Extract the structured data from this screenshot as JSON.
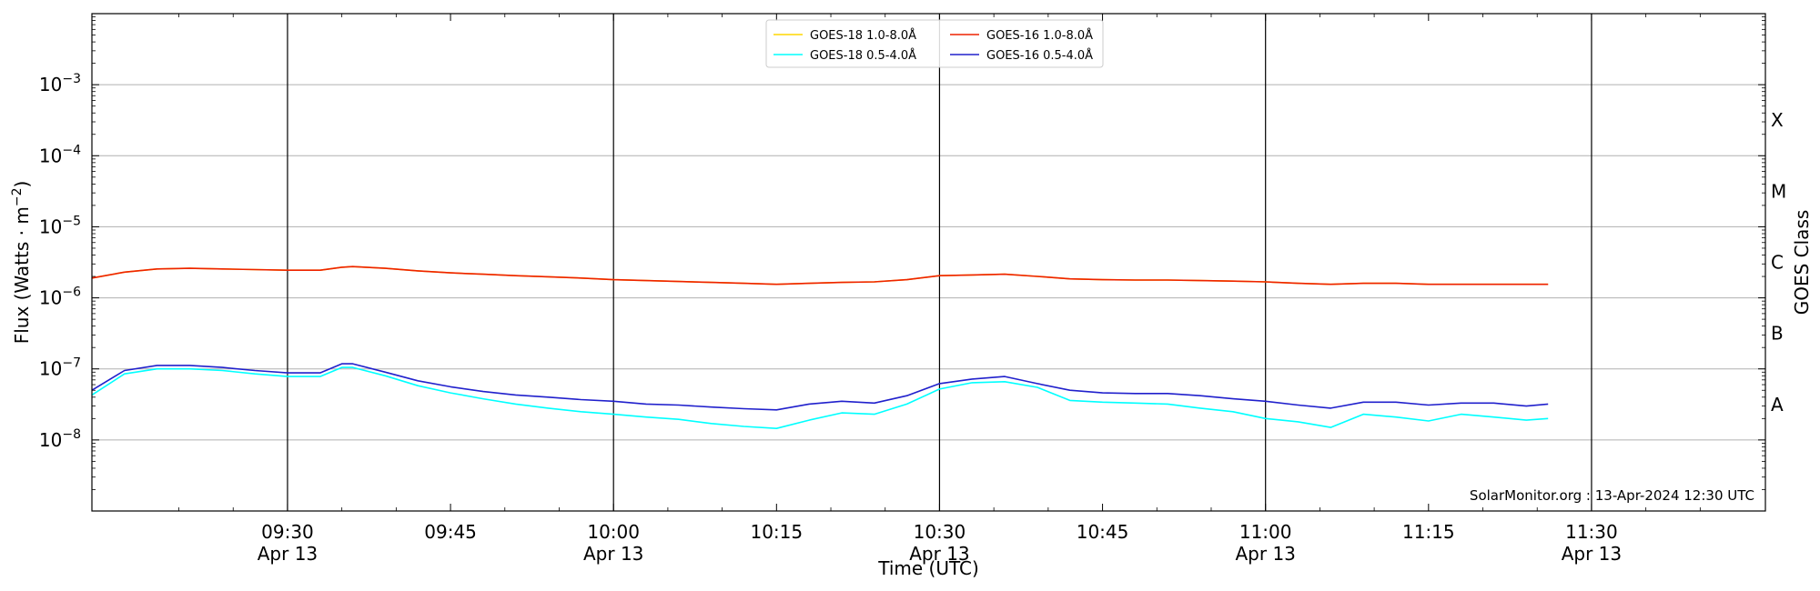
{
  "chart_data": {
    "type": "line",
    "xlabel": "Time (UTC)",
    "ylabel": "Flux (Watts · m",
    "ylabel_sup": "−2",
    "ylabel_close": ")",
    "y2label": "GOES Class",
    "yscale": "log",
    "xlim": [
      "09:12",
      "11:46"
    ],
    "ylim": [
      1e-09,
      0.01
    ],
    "grid": "horizontal",
    "legend_position": "top-center",
    "credit": "SolarMonitor.org : 13-Apr-2024 12:30 UTC",
    "y_ticks": [
      {
        "value": 0.001,
        "base": "10",
        "exp": "−3"
      },
      {
        "value": 0.0001,
        "base": "10",
        "exp": "−4"
      },
      {
        "value": 1e-05,
        "base": "10",
        "exp": "−5"
      },
      {
        "value": 1e-06,
        "base": "10",
        "exp": "−6"
      },
      {
        "value": 1e-07,
        "base": "10",
        "exp": "−7"
      },
      {
        "value": 1e-08,
        "base": "10",
        "exp": "−8"
      }
    ],
    "class_labels": [
      {
        "label": "X",
        "value": 0.000316
      },
      {
        "label": "M",
        "value": 3.16e-05
      },
      {
        "label": "C",
        "value": 3.16e-06
      },
      {
        "label": "B",
        "value": 3.16e-07
      },
      {
        "label": "A",
        "value": 3.16e-08
      }
    ],
    "x_ticks": [
      {
        "time": "09:30",
        "line1": "09:30",
        "line2": "Apr 13"
      },
      {
        "time": "09:45",
        "line1": "09:45",
        "line2": ""
      },
      {
        "time": "10:00",
        "line1": "10:00",
        "line2": "Apr 13"
      },
      {
        "time": "10:15",
        "line1": "10:15",
        "line2": ""
      },
      {
        "time": "10:30",
        "line1": "10:30",
        "line2": "Apr 13"
      },
      {
        "time": "10:45",
        "line1": "10:45",
        "line2": ""
      },
      {
        "time": "11:00",
        "line1": "11:00",
        "line2": "Apr 13"
      },
      {
        "time": "11:15",
        "line1": "11:15",
        "line2": ""
      },
      {
        "time": "11:30",
        "line1": "11:30",
        "line2": "Apr 13"
      }
    ],
    "vlines": [
      "09:30",
      "10:00",
      "10:30",
      "11:00",
      "11:30"
    ],
    "legend": [
      {
        "name": "GOES-18 1.0-8.0Å",
        "color": "#ffd700"
      },
      {
        "name": "GOES-18 0.5-4.0Å",
        "color": "#00ffff"
      },
      {
        "name": "GOES-16 1.0-8.0Å",
        "color": "#ee2200"
      },
      {
        "name": "GOES-16 0.5-4.0Å",
        "color": "#2020cc"
      }
    ],
    "series": [
      {
        "name": "GOES-18 1.0-8.0Å",
        "color": "#ffd700",
        "x": [
          "09:12",
          "09:15",
          "09:18",
          "09:21",
          "09:24",
          "09:27",
          "09:30",
          "09:33",
          "09:35",
          "09:36",
          "09:39",
          "09:42",
          "09:45",
          "09:48",
          "09:51",
          "09:54",
          "09:57",
          "10:00",
          "10:03",
          "10:06",
          "10:09",
          "10:12",
          "10:15",
          "10:18",
          "10:21",
          "10:24",
          "10:27",
          "10:30",
          "10:33",
          "10:36",
          "10:39",
          "10:42",
          "10:45",
          "10:48",
          "10:51",
          "10:54",
          "10:57",
          "11:00",
          "11:03",
          "11:06",
          "11:09",
          "11:12",
          "11:15",
          "11:18",
          "11:21",
          "11:24",
          "11:26"
        ],
        "values": [
          1.9e-06,
          2.3e-06,
          2.55e-06,
          2.6e-06,
          2.55e-06,
          2.5e-06,
          2.45e-06,
          2.45e-06,
          2.7e-06,
          2.75e-06,
          2.6e-06,
          2.4e-06,
          2.25e-06,
          2.15e-06,
          2.05e-06,
          1.98e-06,
          1.9e-06,
          1.8e-06,
          1.75e-06,
          1.7e-06,
          1.65e-06,
          1.6e-06,
          1.55e-06,
          1.6e-06,
          1.65e-06,
          1.68e-06,
          1.8e-06,
          2.05e-06,
          2.1e-06,
          2.15e-06,
          2e-06,
          1.85e-06,
          1.8e-06,
          1.78e-06,
          1.78e-06,
          1.75e-06,
          1.72e-06,
          1.68e-06,
          1.6e-06,
          1.55e-06,
          1.6e-06,
          1.6e-06,
          1.55e-06,
          1.55e-06,
          1.55e-06,
          1.55e-06,
          1.55e-06
        ]
      },
      {
        "name": "GOES-16 1.0-8.0Å",
        "color": "#ee2200",
        "x": [
          "09:12",
          "09:15",
          "09:18",
          "09:21",
          "09:24",
          "09:27",
          "09:30",
          "09:33",
          "09:35",
          "09:36",
          "09:39",
          "09:42",
          "09:45",
          "09:48",
          "09:51",
          "09:54",
          "09:57",
          "10:00",
          "10:03",
          "10:06",
          "10:09",
          "10:12",
          "10:15",
          "10:18",
          "10:21",
          "10:24",
          "10:27",
          "10:30",
          "10:33",
          "10:36",
          "10:39",
          "10:42",
          "10:45",
          "10:48",
          "10:51",
          "10:54",
          "10:57",
          "11:00",
          "11:03",
          "11:06",
          "11:09",
          "11:12",
          "11:15",
          "11:18",
          "11:21",
          "11:24",
          "11:26"
        ],
        "values": [
          1.9e-06,
          2.3e-06,
          2.55e-06,
          2.6e-06,
          2.55e-06,
          2.5e-06,
          2.45e-06,
          2.45e-06,
          2.7e-06,
          2.75e-06,
          2.6e-06,
          2.4e-06,
          2.25e-06,
          2.15e-06,
          2.05e-06,
          1.98e-06,
          1.9e-06,
          1.8e-06,
          1.75e-06,
          1.7e-06,
          1.65e-06,
          1.6e-06,
          1.55e-06,
          1.6e-06,
          1.65e-06,
          1.68e-06,
          1.8e-06,
          2.05e-06,
          2.1e-06,
          2.15e-06,
          2e-06,
          1.85e-06,
          1.8e-06,
          1.78e-06,
          1.78e-06,
          1.75e-06,
          1.72e-06,
          1.68e-06,
          1.6e-06,
          1.55e-06,
          1.6e-06,
          1.6e-06,
          1.55e-06,
          1.55e-06,
          1.55e-06,
          1.55e-06,
          1.55e-06
        ]
      },
      {
        "name": "GOES-18 0.5-4.0Å",
        "color": "#00ffff",
        "x": [
          "09:12",
          "09:15",
          "09:18",
          "09:21",
          "09:24",
          "09:27",
          "09:30",
          "09:33",
          "09:35",
          "09:36",
          "09:39",
          "09:42",
          "09:45",
          "09:48",
          "09:51",
          "09:54",
          "09:57",
          "10:00",
          "10:03",
          "10:06",
          "10:09",
          "10:12",
          "10:15",
          "10:18",
          "10:21",
          "10:24",
          "10:27",
          "10:30",
          "10:33",
          "10:36",
          "10:39",
          "10:42",
          "10:45",
          "10:48",
          "10:51",
          "10:54",
          "10:57",
          "11:00",
          "11:03",
          "11:06",
          "11:09",
          "11:12",
          "11:15",
          "11:18",
          "11:21",
          "11:24",
          "11:26"
        ],
        "values": [
          4.3e-08,
          8.5e-08,
          1e-07,
          1e-07,
          9.5e-08,
          8.5e-08,
          7.8e-08,
          7.8e-08,
          1.05e-07,
          1.05e-07,
          8e-08,
          5.8e-08,
          4.6e-08,
          3.8e-08,
          3.2e-08,
          2.8e-08,
          2.5e-08,
          2.3e-08,
          2.1e-08,
          1.95e-08,
          1.7e-08,
          1.55e-08,
          1.45e-08,
          1.9e-08,
          2.4e-08,
          2.3e-08,
          3.2e-08,
          5.2e-08,
          6.4e-08,
          6.6e-08,
          5.5e-08,
          3.6e-08,
          3.4e-08,
          3.3e-08,
          3.2e-08,
          2.8e-08,
          2.5e-08,
          2e-08,
          1.8e-08,
          1.5e-08,
          2.3e-08,
          2.1e-08,
          1.85e-08,
          2.3e-08,
          2.1e-08,
          1.9e-08,
          2e-08
        ]
      },
      {
        "name": "GOES-16 0.5-4.0Å",
        "color": "#2020cc",
        "x": [
          "09:12",
          "09:15",
          "09:18",
          "09:21",
          "09:24",
          "09:27",
          "09:30",
          "09:33",
          "09:35",
          "09:36",
          "09:39",
          "09:42",
          "09:45",
          "09:48",
          "09:51",
          "09:54",
          "09:57",
          "10:00",
          "10:03",
          "10:06",
          "10:09",
          "10:12",
          "10:15",
          "10:18",
          "10:21",
          "10:24",
          "10:27",
          "10:30",
          "10:33",
          "10:36",
          "10:39",
          "10:42",
          "10:45",
          "10:48",
          "10:51",
          "10:54",
          "10:57",
          "11:00",
          "11:03",
          "11:06",
          "11:09",
          "11:12",
          "11:15",
          "11:18",
          "11:21",
          "11:24",
          "11:26"
        ],
        "values": [
          5e-08,
          9.5e-08,
          1.12e-07,
          1.12e-07,
          1.05e-07,
          9.5e-08,
          8.8e-08,
          8.8e-08,
          1.18e-07,
          1.18e-07,
          9e-08,
          6.8e-08,
          5.6e-08,
          4.8e-08,
          4.3e-08,
          4e-08,
          3.7e-08,
          3.5e-08,
          3.2e-08,
          3.1e-08,
          2.9e-08,
          2.75e-08,
          2.65e-08,
          3.2e-08,
          3.5e-08,
          3.3e-08,
          4.2e-08,
          6.2e-08,
          7.2e-08,
          7.8e-08,
          6.2e-08,
          5e-08,
          4.6e-08,
          4.5e-08,
          4.5e-08,
          4.2e-08,
          3.8e-08,
          3.5e-08,
          3.1e-08,
          2.8e-08,
          3.4e-08,
          3.4e-08,
          3.1e-08,
          3.3e-08,
          3.3e-08,
          3e-08,
          3.2e-08
        ]
      }
    ]
  }
}
